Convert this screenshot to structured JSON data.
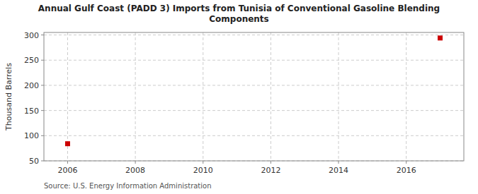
{
  "chart_data": {
    "type": "scatter",
    "title": "Annual Gulf Coast (PADD 3) Imports from Tunisia of Conventional Gasoline Blending\nComponents",
    "y_label": "Thousand Barrels",
    "annotations": [
      "Source: U.S. Energy Information Administration"
    ],
    "x": [
      2006,
      2017
    ],
    "values": [
      84,
      294
    ],
    "color": "#cc0000",
    "marker": "square",
    "xlim": [
      2005.3,
      2017.7
    ],
    "ylim": [
      50,
      305
    ],
    "xticks": [
      2006,
      2008,
      2010,
      2012,
      2014,
      2016
    ],
    "yticks": [
      50,
      100,
      150,
      200,
      250,
      300
    ],
    "grid": true
  }
}
